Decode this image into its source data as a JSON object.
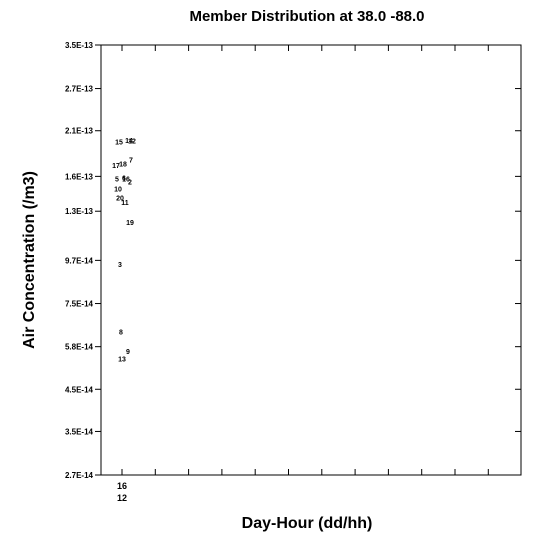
{
  "chart_data": {
    "type": "scatter",
    "title": "Member Distribution at  38.0  -88.0",
    "xlabel": "Day-Hour (dd/hh)",
    "ylabel": "Air Concentration (/m3)",
    "y_scale": "log",
    "ylim": [
      2.7e-14,
      3.5e-13
    ],
    "y_ticks": [
      {
        "value": 2.7e-14,
        "label": "2.7E-14"
      },
      {
        "value": 3.5e-14,
        "label": "3.5E-14"
      },
      {
        "value": 4.5e-14,
        "label": "4.5E-14"
      },
      {
        "value": 5.8e-14,
        "label": "5.8E-14"
      },
      {
        "value": 7.5e-14,
        "label": "7.5E-14"
      },
      {
        "value": 9.7e-14,
        "label": "9.7E-14"
      },
      {
        "value": 1.3e-13,
        "label": "1.3E-13"
      },
      {
        "value": 1.6e-13,
        "label": "1.6E-13"
      },
      {
        "value": 2.1e-13,
        "label": "2.1E-13"
      },
      {
        "value": 2.7e-13,
        "label": "2.7E-13"
      },
      {
        "value": 3.5e-13,
        "label": "3.5E-13"
      }
    ],
    "x_ticks": [
      {
        "day": "16",
        "hour": "12"
      }
    ],
    "grid": false,
    "points": [
      {
        "member": "13",
        "y": 5.4e-14
      },
      {
        "member": "9",
        "y": 5.65e-14
      },
      {
        "member": "8",
        "y": 6.35e-14
      },
      {
        "member": "3",
        "y": 9.5e-14
      },
      {
        "member": "19",
        "y": 1.22e-13
      },
      {
        "member": "11",
        "y": 1.375e-13
      },
      {
        "member": "20",
        "y": 1.41e-13
      },
      {
        "member": "10",
        "y": 1.49e-13
      },
      {
        "member": "16",
        "y": 1.58e-13
      },
      {
        "member": "6",
        "y": 1.59e-13
      },
      {
        "member": "5",
        "y": 1.58e-13
      },
      {
        "member": "2",
        "y": 1.55e-13
      },
      {
        "member": "7",
        "y": 1.77e-13
      },
      {
        "member": "18",
        "y": 1.73e-13
      },
      {
        "member": "17",
        "y": 1.71e-13
      },
      {
        "member": "15",
        "y": 1.97e-13
      },
      {
        "member": "12",
        "y": 1.98e-13
      },
      {
        "member": "14",
        "y": 1.99e-13
      }
    ]
  }
}
